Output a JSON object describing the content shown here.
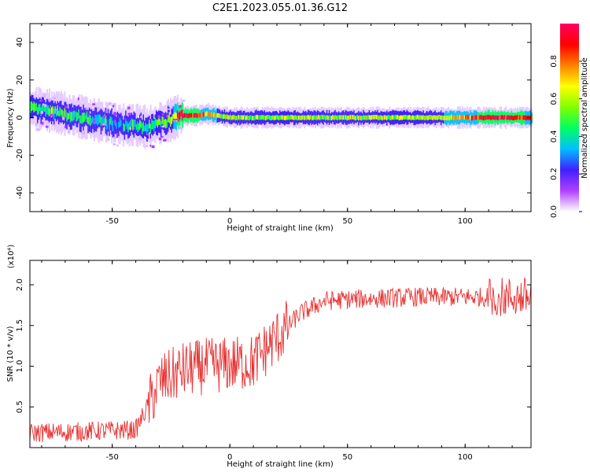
{
  "title": "C2E1.2023.055.01.36.G12",
  "colorbar": {
    "label": "Normalized spectral amplitude",
    "range": [
      0,
      1
    ],
    "ticks": [
      0.0,
      0.2,
      0.4,
      0.6,
      0.8
    ],
    "tick_labels": [
      "0.0",
      "0.2",
      "0.4",
      "0.6",
      "0.8"
    ],
    "colors": [
      "#ffffff",
      "#b040ff",
      "#4020ff",
      "#00c0ff",
      "#00ff60",
      "#80ff00",
      "#ffff00",
      "#ff8000",
      "#ff0000",
      "#ff0060"
    ]
  },
  "chart_data": [
    {
      "type": "heatmap",
      "xlabel": "Height of straight line (km)",
      "ylabel": "Frequency (Hz)",
      "xlim": [
        -85,
        128
      ],
      "ylim": [
        -50,
        50
      ],
      "x_ticks": [
        -50,
        0,
        50,
        100
      ],
      "x_tick_labels": [
        "-50",
        "0",
        "50",
        "100"
      ],
      "y_ticks": [
        -40,
        -20,
        0,
        20,
        40
      ],
      "y_tick_labels": [
        "-40",
        "-20",
        "0",
        "20",
        "40"
      ],
      "ridge": {
        "x": [
          -85,
          -78,
          -70,
          -62,
          -55,
          -50,
          -45,
          -40,
          -35,
          -30,
          -25,
          -22,
          -15,
          -10,
          -5,
          0,
          10,
          30,
          50,
          70,
          90,
          110,
          128
        ],
        "y": [
          5,
          4,
          2,
          0,
          -2,
          -3,
          -4,
          -4,
          -5,
          -3,
          -1,
          1,
          1,
          2,
          1,
          0,
          0,
          0,
          0,
          0,
          0,
          0,
          0
        ],
        "amplitude": [
          0.45,
          0.5,
          0.45,
          0.42,
          0.4,
          0.38,
          0.38,
          0.4,
          0.42,
          0.45,
          0.5,
          0.95,
          0.95,
          0.75,
          0.6,
          0.55,
          0.55,
          0.55,
          0.58,
          0.58,
          0.6,
          0.95,
          0.85
        ]
      }
    },
    {
      "type": "line",
      "xlabel": "Height of straight line (km)",
      "ylabel": "SNR (10 * v/v)",
      "y_scale_label": "(x10⁴)",
      "xlim": [
        -85,
        128
      ],
      "ylim": [
        0,
        2.3
      ],
      "x_ticks": [
        -50,
        0,
        50,
        100
      ],
      "x_tick_labels": [
        "-50",
        "0",
        "50",
        "100"
      ],
      "y_ticks": [
        0.5,
        1.0,
        1.5,
        2.0
      ],
      "y_tick_labels": [
        "0.5",
        "1.0",
        "1.5",
        "2.0"
      ],
      "series": [
        {
          "color": "#e83030",
          "trend_x": [
            -85,
            -60,
            -40,
            -35,
            -30,
            -20,
            -10,
            0,
            10,
            20,
            30,
            40,
            50,
            60,
            80,
            100,
            120,
            128
          ],
          "trend_y": [
            0.18,
            0.2,
            0.22,
            0.5,
            0.8,
            0.95,
            1.0,
            1.02,
            1.05,
            1.35,
            1.65,
            1.8,
            1.82,
            1.83,
            1.85,
            1.85,
            1.85,
            1.85
          ]
        }
      ]
    }
  ]
}
